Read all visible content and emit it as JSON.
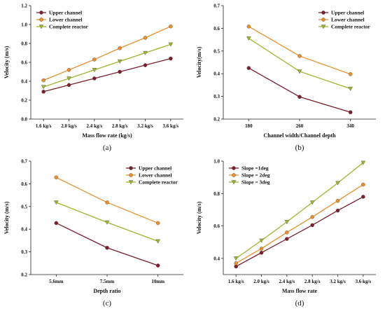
{
  "chart_data": [
    {
      "type": "line",
      "panel_label": "(a)",
      "categories": [
        "1.6 kg/s",
        "2.0 kg/s",
        "2.4 kg/s",
        "2.8 kg/s",
        "3.2 kg/s",
        "3.6 kg/s"
      ],
      "xlabel": "Mass flow rate (kg/s)",
      "ylabel": "Velocity (m/s)",
      "ylim": [
        0.0,
        1.2
      ],
      "yticks": [
        "0.0",
        "0.2",
        "0.4",
        "0.6",
        "0.8",
        "1.0",
        "1.2"
      ],
      "legend_position": "top-left",
      "series": [
        {
          "name": "Upper channel",
          "color": "#7a1f2b",
          "marker": "circle",
          "values": [
            0.29,
            0.36,
            0.43,
            0.5,
            0.57,
            0.64
          ]
        },
        {
          "name": "Lower channel",
          "color": "#e8902e",
          "marker": "circle",
          "values": [
            0.41,
            0.52,
            0.63,
            0.75,
            0.86,
            0.98
          ]
        },
        {
          "name": "Complete reactor",
          "color": "#9db52c",
          "marker": "triangle",
          "values": [
            0.34,
            0.43,
            0.52,
            0.61,
            0.7,
            0.79
          ]
        }
      ]
    },
    {
      "type": "line",
      "panel_label": "(b)",
      "categories": [
        "180",
        "260",
        "340"
      ],
      "xlabel": "Channel width/Channel depth",
      "ylabel": "Velocity(m/s)",
      "ylim": [
        0.2,
        0.7
      ],
      "yticks": [
        "0.2",
        "0.3",
        "0.4",
        "0.5",
        "0.6",
        "0.7"
      ],
      "legend_position": "top-right",
      "series": [
        {
          "name": "Upper channel",
          "color": "#7a1f2b",
          "marker": "circle",
          "values": [
            0.425,
            0.298,
            0.23
          ]
        },
        {
          "name": "Lower channel",
          "color": "#e8902e",
          "marker": "circle",
          "values": [
            0.608,
            0.478,
            0.398
          ]
        },
        {
          "name": "Complete reactor",
          "color": "#9db52c",
          "marker": "triangle",
          "values": [
            0.556,
            0.41,
            0.334
          ]
        }
      ]
    },
    {
      "type": "line",
      "panel_label": "(c)",
      "categories": [
        "5.6mm",
        "7.5mm",
        "10mm"
      ],
      "xlabel": "Depth ratio",
      "ylabel": "Velocity (m/s)",
      "ylim": [
        0.2,
        0.7
      ],
      "yticks": [
        "0.2",
        "0.3",
        "0.4",
        "0.5",
        "0.6",
        "0.7"
      ],
      "legend_position": "top-right",
      "series": [
        {
          "name": "Upper channel",
          "color": "#7a1f2b",
          "marker": "circle",
          "values": [
            0.427,
            0.318,
            0.24
          ]
        },
        {
          "name": "Lower channel",
          "color": "#e8902e",
          "marker": "circle",
          "values": [
            0.628,
            0.518,
            0.427
          ]
        },
        {
          "name": "Complete reactor",
          "color": "#9db52c",
          "marker": "triangle",
          "values": [
            0.518,
            0.43,
            0.347
          ]
        }
      ]
    },
    {
      "type": "line",
      "panel_label": "(d)",
      "categories": [
        "1.6 kg/s",
        "2.0 kg/s",
        "2.4 kg/s",
        "2.8 kg/s",
        "3.2 kg/s",
        "3.6 kg/s"
      ],
      "xlabel": "Mass flow rate",
      "ylabel": "Velocity (m/s)",
      "ylim": [
        0.3,
        1.0
      ],
      "yticks": [
        "0.4",
        "0.6",
        "0.8",
        "1.0"
      ],
      "legend_position": "top-left",
      "series": [
        {
          "name": "Slope =1deg",
          "color": "#7a1f2b",
          "marker": "circle",
          "values": [
            0.35,
            0.435,
            0.52,
            0.605,
            0.695,
            0.78
          ]
        },
        {
          "name": "Slope = 2deg",
          "color": "#e8902e",
          "marker": "circle",
          "values": [
            0.37,
            0.46,
            0.56,
            0.655,
            0.755,
            0.855
          ]
        },
        {
          "name": "Slope = 3deg",
          "color": "#9db52c",
          "marker": "triangle",
          "values": [
            0.4,
            0.51,
            0.625,
            0.745,
            0.865,
            0.99
          ]
        }
      ]
    }
  ]
}
